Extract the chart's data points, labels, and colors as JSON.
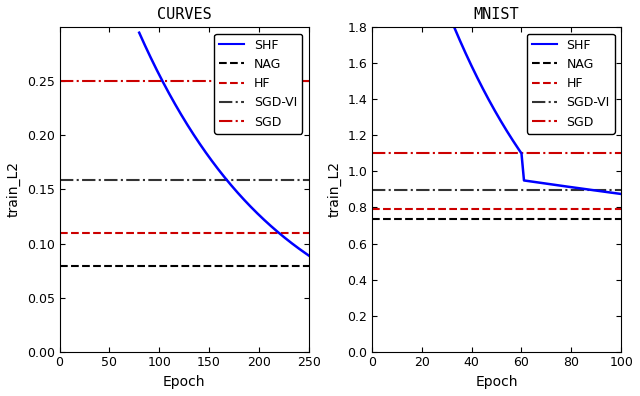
{
  "curves_title": "CURVES",
  "mnist_title": "MNIST",
  "xlabel": "Epoch",
  "ylabel": "train_L2",
  "curves": {
    "xlim": [
      0,
      250
    ],
    "ylim": [
      0,
      0.3
    ],
    "yticks": [
      0,
      0.05,
      0.1,
      0.15,
      0.2,
      0.25
    ],
    "xticks": [
      0,
      50,
      100,
      150,
      200,
      250
    ],
    "shf_start_epoch": 80,
    "shf_start_val": 0.295,
    "shf_end_epoch": 250,
    "shf_end_val": 0.089,
    "nag_val": 0.079,
    "hf_val": 0.11,
    "sgdvi_val": 0.159,
    "sgd_val": 0.25
  },
  "mnist": {
    "xlim": [
      0,
      100
    ],
    "ylim": [
      0,
      1.8
    ],
    "yticks": [
      0,
      0.2,
      0.4,
      0.6,
      0.8,
      1.0,
      1.2,
      1.4,
      1.6,
      1.8
    ],
    "xticks": [
      0,
      20,
      40,
      60,
      80,
      100
    ],
    "shf_start_epoch": 33,
    "shf_start_val": 1.8,
    "shf_plateau1_epoch": 60,
    "shf_plateau1_val": 1.1,
    "shf_drop_epoch": 61,
    "shf_drop_val": 0.95,
    "shf_end_epoch": 100,
    "shf_end_val": 0.875,
    "nag_val": 0.735,
    "hf_val": 0.79,
    "sgdvi_val": 0.895,
    "sgd_val": 1.1
  },
  "shf_color": "#0000FF",
  "nag_color": "#000000",
  "hf_color": "#CC0000",
  "sgdvi_color": "#333333",
  "sgd_color": "#CC0000",
  "bg_color": "#FFFFFF",
  "legend_labels": [
    "SHF",
    "NAG",
    "HF",
    "SGD-VI",
    "SGD"
  ],
  "title_fontsize": 11,
  "label_fontsize": 10,
  "tick_fontsize": 9,
  "legend_fontsize": 9
}
